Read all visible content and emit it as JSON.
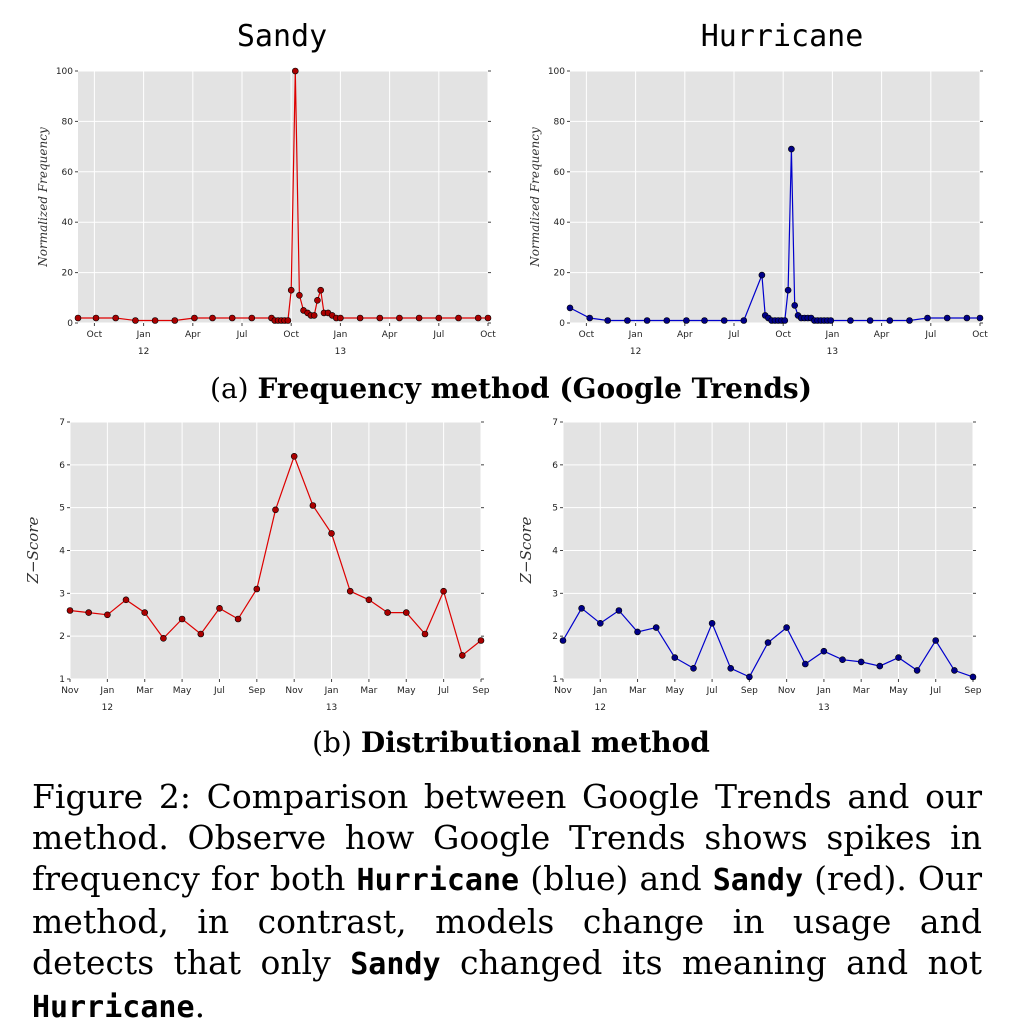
{
  "chart_data": [
    {
      "type": "line",
      "panel": "a-left",
      "title": "Sandy",
      "ylabel": "Normalized  Frequency",
      "ylim": [
        0,
        100
      ],
      "yticks": [
        0,
        20,
        40,
        60,
        80,
        100
      ],
      "xlim_months": [
        0,
        25
      ],
      "xticks": [
        {
          "m": 1,
          "label": "Oct"
        },
        {
          "m": 4,
          "label": "Jan"
        },
        {
          "m": 7,
          "label": "Apr"
        },
        {
          "m": 10,
          "label": "Jul"
        },
        {
          "m": 13,
          "label": "Oct"
        },
        {
          "m": 16,
          "label": "Jan"
        },
        {
          "m": 19,
          "label": "Apr"
        },
        {
          "m": 22,
          "label": "Jul"
        },
        {
          "m": 25,
          "label": "Oct"
        }
      ],
      "year_labels": [
        {
          "m": 4,
          "label": "12"
        },
        {
          "m": 16,
          "label": "13"
        }
      ],
      "color": "#dd0000",
      "marker_fill": "#aa0000",
      "series": [
        {
          "name": "Sandy",
          "x": [
            0,
            1.1,
            2.3,
            3.5,
            4.7,
            5.9,
            7.1,
            8.2,
            9.4,
            10.6,
            11.8,
            12.0,
            12.2,
            12.4,
            12.6,
            12.8,
            13.0,
            13.25,
            13.5,
            13.75,
            14.0,
            14.2,
            14.4,
            14.6,
            14.8,
            15.0,
            15.25,
            15.5,
            15.75,
            16.0,
            17.2,
            18.4,
            19.6,
            20.8,
            22.0,
            23.2,
            24.4,
            25.0
          ],
          "y": [
            2,
            2,
            2,
            1,
            1,
            1,
            2,
            2,
            2,
            2,
            2,
            1,
            1,
            1,
            1,
            1,
            13,
            100,
            11,
            5,
            4,
            3,
            3,
            9,
            13,
            4,
            4,
            3,
            2,
            2,
            2,
            2,
            2,
            2,
            2,
            2,
            2,
            2
          ]
        }
      ]
    },
    {
      "type": "line",
      "panel": "a-right",
      "title": "Hurricane",
      "ylabel": "Normalized  Frequency",
      "ylim": [
        0,
        100
      ],
      "yticks": [
        0,
        20,
        40,
        60,
        80,
        100
      ],
      "xlim_months": [
        0,
        25
      ],
      "xticks": [
        {
          "m": 1,
          "label": "Oct"
        },
        {
          "m": 4,
          "label": "Jan"
        },
        {
          "m": 7,
          "label": "Apr"
        },
        {
          "m": 10,
          "label": "Jul"
        },
        {
          "m": 13,
          "label": "Oct"
        },
        {
          "m": 16,
          "label": "Jan"
        },
        {
          "m": 19,
          "label": "Apr"
        },
        {
          "m": 22,
          "label": "Jul"
        },
        {
          "m": 25,
          "label": "Oct"
        }
      ],
      "year_labels": [
        {
          "m": 4,
          "label": "12"
        },
        {
          "m": 16,
          "label": "13"
        }
      ],
      "color": "#0000cc",
      "marker_fill": "#000088",
      "series": [
        {
          "name": "Hurricane",
          "x": [
            0,
            1.2,
            2.3,
            3.5,
            4.7,
            5.9,
            7.1,
            8.2,
            9.4,
            10.6,
            11.7,
            11.9,
            12.1,
            12.3,
            12.5,
            12.7,
            12.9,
            13.1,
            13.3,
            13.5,
            13.7,
            13.9,
            14.1,
            14.3,
            14.5,
            14.7,
            14.9,
            15.1,
            15.3,
            15.5,
            15.7,
            15.9,
            17.1,
            18.3,
            19.5,
            20.7,
            21.8,
            23.0,
            24.2,
            25.0
          ],
          "y": [
            6,
            2,
            1,
            1,
            1,
            1,
            1,
            1,
            1,
            1,
            19,
            3,
            2,
            1,
            1,
            1,
            1,
            1,
            13,
            69,
            7,
            3,
            2,
            2,
            2,
            2,
            1,
            1,
            1,
            1,
            1,
            1,
            1,
            1,
            1,
            1,
            2,
            2,
            2,
            2
          ]
        }
      ]
    },
    {
      "type": "line",
      "panel": "b-left",
      "title": "",
      "ylabel": "Z−Score",
      "ylim": [
        1,
        7
      ],
      "yticks": [
        1,
        2,
        3,
        4,
        5,
        6,
        7
      ],
      "xlim_months": [
        0,
        22
      ],
      "xticks": [
        {
          "m": 0,
          "label": "Nov"
        },
        {
          "m": 2,
          "label": "Jan"
        },
        {
          "m": 4,
          "label": "Mar"
        },
        {
          "m": 6,
          "label": "May"
        },
        {
          "m": 8,
          "label": "Jul"
        },
        {
          "m": 10,
          "label": "Sep"
        },
        {
          "m": 12,
          "label": "Nov"
        },
        {
          "m": 14,
          "label": "Jan"
        },
        {
          "m": 16,
          "label": "Mar"
        },
        {
          "m": 18,
          "label": "May"
        },
        {
          "m": 20,
          "label": "Jul"
        },
        {
          "m": 22,
          "label": "Sep"
        }
      ],
      "year_labels": [
        {
          "m": 2,
          "label": "12"
        },
        {
          "m": 14,
          "label": "13"
        }
      ],
      "color": "#dd0000",
      "marker_fill": "#aa0000",
      "series": [
        {
          "name": "Sandy",
          "x": [
            0,
            1,
            2,
            3,
            4,
            5,
            6,
            7,
            8,
            9,
            10,
            11,
            12,
            13,
            14,
            15,
            16,
            17,
            18,
            19,
            20,
            21,
            22
          ],
          "y": [
            2.6,
            2.55,
            2.5,
            2.85,
            2.55,
            1.95,
            2.4,
            2.05,
            2.65,
            2.4,
            3.1,
            4.95,
            6.2,
            5.05,
            4.4,
            3.05,
            2.85,
            2.55,
            2.55,
            2.05,
            3.05,
            1.55,
            1.9
          ]
        }
      ]
    },
    {
      "type": "line",
      "panel": "b-right",
      "title": "",
      "ylabel": "Z−Score",
      "ylim": [
        1,
        7
      ],
      "yticks": [
        1,
        2,
        3,
        4,
        5,
        6,
        7
      ],
      "xlim_months": [
        0,
        22
      ],
      "xticks": [
        {
          "m": 0,
          "label": "Nov"
        },
        {
          "m": 2,
          "label": "Jan"
        },
        {
          "m": 4,
          "label": "Mar"
        },
        {
          "m": 6,
          "label": "May"
        },
        {
          "m": 8,
          "label": "Jul"
        },
        {
          "m": 10,
          "label": "Sep"
        },
        {
          "m": 12,
          "label": "Nov"
        },
        {
          "m": 14,
          "label": "Jan"
        },
        {
          "m": 16,
          "label": "Mar"
        },
        {
          "m": 18,
          "label": "May"
        },
        {
          "m": 20,
          "label": "Jul"
        },
        {
          "m": 22,
          "label": "Sep"
        }
      ],
      "year_labels": [
        {
          "m": 2,
          "label": "12"
        },
        {
          "m": 14,
          "label": "13"
        }
      ],
      "color": "#0000cc",
      "marker_fill": "#000088",
      "series": [
        {
          "name": "Hurricane",
          "x": [
            0,
            1,
            2,
            3,
            4,
            5,
            6,
            7,
            8,
            9,
            10,
            11,
            12,
            13,
            14,
            15,
            16,
            17,
            18,
            19,
            20,
            21,
            22
          ],
          "y": [
            1.9,
            2.65,
            2.3,
            2.6,
            2.1,
            2.2,
            1.5,
            1.25,
            2.3,
            1.25,
            1.05,
            1.85,
            2.2,
            1.35,
            1.65,
            1.45,
            1.4,
            1.3,
            1.5,
            1.2,
            1.9,
            1.2,
            1.05
          ]
        }
      ]
    }
  ],
  "subcaptions": {
    "a_prefix": "(a)",
    "a_bold": "Frequency method (Google Trends)",
    "b_prefix": "(b)",
    "b_bold": "Distributional method"
  },
  "caption": {
    "t1": "Figure 2:  Comparison between Google Trends and our method.  Observe how Google Trends shows spikes in frequency for both ",
    "w_hurricane": "Hurricane",
    "t2": " (blue) and ",
    "w_sandy": "Sandy",
    "t3": " (red).  Our method, in contrast, models change in usage and detects that only ",
    "w_sandy2": "Sandy",
    "t4": " changed its meaning and not ",
    "w_hurricane2": "Hurricane",
    "t5": "."
  }
}
